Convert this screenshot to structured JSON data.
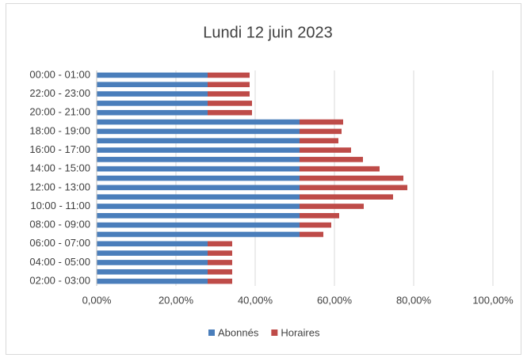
{
  "chart_data": {
    "type": "stacked_bar_horizontal",
    "title": "Lundi 12 juin 2023",
    "categories": [
      "02:00 - 03:00",
      null,
      "04:00 - 05:00",
      null,
      "06:00 - 07:00",
      null,
      "08:00 - 09:00",
      null,
      "10:00 - 11:00",
      null,
      "12:00 - 13:00",
      null,
      "14:00 - 15:00",
      null,
      "16:00 - 17:00",
      null,
      "18:00 - 19:00",
      null,
      "20:00 - 21:00",
      null,
      "22:00 - 23:00",
      null,
      "00:00 - 01:00"
    ],
    "series": [
      {
        "name": "Abonnés",
        "color": "#4a7ebb",
        "values": [
          28,
          28,
          28,
          28,
          28,
          51.2,
          51.2,
          51.2,
          51.2,
          51.2,
          51.2,
          51.2,
          51.2,
          51.2,
          51.2,
          51.2,
          51.2,
          51.2,
          28,
          28,
          28,
          28,
          28
        ]
      },
      {
        "name": "Horaires",
        "color": "#be4b48",
        "values": [
          6.2,
          6.2,
          6.2,
          6.2,
          6.2,
          6,
          8,
          10,
          16.2,
          23.6,
          27.2,
          26.2,
          20.2,
          16,
          13,
          9.8,
          10.6,
          11,
          11.2,
          11.2,
          10.6,
          10.6,
          10.6
        ]
      }
    ],
    "xlim": [
      0,
      100
    ],
    "xticks": [
      {
        "value": 0,
        "label": "0,00%"
      },
      {
        "value": 20,
        "label": "20,00%"
      },
      {
        "value": 40,
        "label": "40,00%"
      },
      {
        "value": 60,
        "label": "60,00%"
      },
      {
        "value": 80,
        "label": "80,00%"
      },
      {
        "value": 100,
        "label": "100,00%"
      }
    ],
    "grid": true,
    "legend": "bottom"
  }
}
